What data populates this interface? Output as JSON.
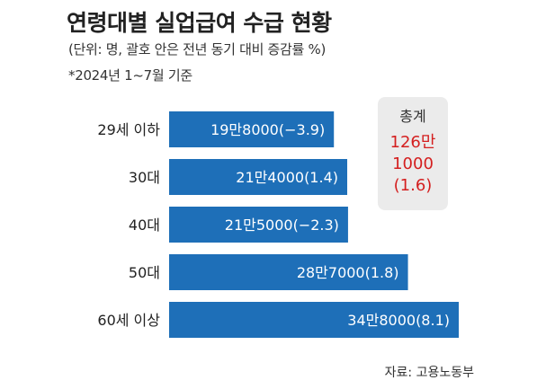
{
  "title": "연령대별 실업급여 수급 현황",
  "subtitle": "(단위: 명, 괄호 안은 전년 동기 대비 증감률 %)",
  "note": "*2024년 1~7월 기준",
  "source": "자료: 고용노동부",
  "total": {
    "label": "총계",
    "line1": "126만",
    "line2": "1000",
    "line3": "(1.6)",
    "color": "#d41f1f"
  },
  "colors": {
    "bar": "#1e6fb8",
    "bar_text": "#ffffff"
  },
  "chart_data": {
    "type": "bar",
    "orientation": "horizontal",
    "title": "연령대별 실업급여 수급 현황",
    "categories": [
      "29세 이하",
      "30대",
      "40대",
      "50대",
      "60세 이상"
    ],
    "values": [
      198000,
      214000,
      215000,
      287000,
      348000
    ],
    "change_pct": [
      -3.9,
      1.4,
      -2.3,
      1.8,
      8.1
    ],
    "data_labels": [
      "19만8000(−3.9)",
      "21만4000(1.4)",
      "21만5000(−2.3)",
      "28만7000(1.8)",
      "34만8000(8.1)"
    ]
  }
}
